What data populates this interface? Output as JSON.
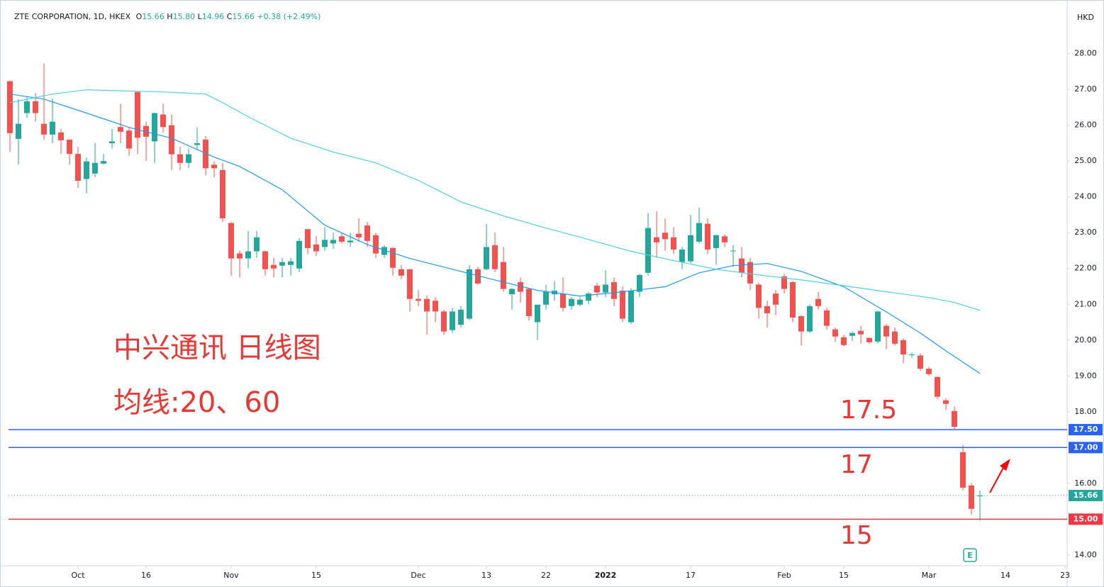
{
  "chart_data": {
    "type": "candlestick",
    "header": {
      "symbol": "ZTE CORPORATION, 1D, HKEX",
      "fields": [
        {
          "label": "O",
          "value": "15.66"
        },
        {
          "label": "H",
          "value": "15.80"
        },
        {
          "label": "L",
          "value": "14.96"
        },
        {
          "label": "C",
          "value": "15.66"
        }
      ],
      "change": "+0.38 (+2.49%)"
    },
    "currency": "HKD",
    "up_color": "#26a69a",
    "down_color": "#ef5350",
    "x": [
      0,
      1,
      2,
      3,
      4,
      5,
      6,
      7,
      8,
      9,
      10,
      11,
      12,
      13,
      14,
      15,
      16,
      17,
      18,
      19,
      20,
      21,
      22,
      23,
      24,
      25,
      26,
      27,
      28,
      29,
      30,
      31,
      32,
      33,
      34,
      35,
      36,
      37,
      38,
      39,
      40,
      41,
      42,
      43,
      44,
      45,
      46,
      47,
      48,
      49,
      50,
      51,
      52,
      53,
      54,
      55,
      56,
      57,
      58,
      59,
      60,
      61,
      62,
      63,
      64,
      65,
      66,
      67,
      68,
      69,
      70,
      71,
      72,
      73,
      74,
      75,
      76,
      77,
      78,
      79,
      80,
      81,
      82,
      83,
      84,
      85,
      86,
      87,
      88,
      89,
      90,
      91,
      92,
      93,
      94,
      95,
      96,
      97,
      98,
      99,
      100,
      101,
      102,
      103,
      104,
      105,
      106,
      107,
      108,
      109,
      110,
      111,
      112,
      113,
      114
    ],
    "open": [
      27.23,
      25.62,
      26.34,
      26.67,
      26.04,
      25.74,
      25.8,
      25.6,
      25.2,
      24.5,
      24.65,
      24.93,
      25.5,
      25.95,
      25.85,
      26.93,
      25.98,
      25.55,
      26.3,
      26.0,
      25.19,
      24.95,
      25.45,
      25.6,
      24.9,
      24.75,
      23.27,
      22.42,
      22.28,
      22.48,
      22.48,
      22.1,
      22.08,
      22.1,
      22.0,
      23.1,
      22.67,
      22.6,
      22.7,
      22.9,
      22.73,
      22.97,
      23.2,
      22.93,
      22.38,
      22.57,
      21.98,
      21.98,
      21.15,
      21.15,
      21.1,
      20.8,
      20.28,
      20.43,
      20.6,
      21.98,
      21.98,
      22.65,
      22.18,
      21.28,
      21.62,
      21.43,
      20.5,
      20.99,
      21.28,
      21.3,
      20.95,
      20.99,
      21.1,
      21.52,
      21.33,
      21.62,
      21.38,
      20.5,
      21.35,
      21.88,
      22.87,
      23.0,
      22.87,
      22.18,
      22.2,
      22.75,
      23.25,
      22.57,
      22.9,
      22.48,
      22.28,
      22.18,
      21.55,
      20.95,
      21.3,
      21.78,
      21.62,
      20.67,
      20.24,
      21.15,
      20.83,
      20.3,
      20.08,
      20.12,
      20.26,
      20.06,
      19.96,
      20.4,
      20.24,
      20.0,
      19.58,
      19.57,
      19.2,
      18.97,
      18.32,
      18.02,
      16.87,
      15.94,
      15.66
    ],
    "high": [
      27.25,
      26.73,
      26.8,
      26.9,
      27.72,
      26.75,
      25.9,
      25.6,
      25.4,
      25.1,
      25.5,
      25.2,
      25.9,
      26.6,
      25.95,
      26.93,
      26.1,
      26.35,
      26.6,
      26.3,
      25.4,
      25.35,
      25.95,
      25.7,
      25.0,
      24.95,
      23.3,
      22.5,
      23.05,
      23.05,
      22.5,
      22.3,
      22.3,
      22.3,
      22.85,
      23.1,
      22.9,
      23.15,
      23.0,
      23.0,
      23.0,
      23.4,
      23.3,
      23.0,
      22.65,
      22.6,
      22.1,
      21.98,
      21.4,
      21.25,
      21.2,
      20.85,
      20.9,
      20.95,
      22.1,
      22.05,
      23.25,
      23.0,
      22.6,
      21.45,
      21.75,
      21.45,
      20.99,
      21.55,
      21.65,
      21.75,
      21.2,
      21.2,
      21.35,
      21.6,
      21.95,
      21.75,
      21.5,
      21.45,
      21.85,
      23.55,
      23.6,
      23.4,
      23.15,
      22.6,
      23.5,
      23.7,
      23.4,
      22.95,
      22.95,
      22.65,
      22.6,
      22.3,
      21.6,
      21.1,
      21.4,
      21.85,
      21.65,
      20.7,
      21.0,
      21.35,
      20.9,
      20.35,
      20.15,
      20.25,
      20.4,
      20.08,
      20.82,
      20.45,
      20.35,
      20.05,
      19.65,
      19.63,
      19.25,
      18.98,
      18.38,
      18.15,
      17.07,
      16.0,
      15.8
    ],
    "low": [
      25.25,
      24.9,
      26.2,
      26.1,
      25.6,
      25.5,
      25.2,
      24.9,
      24.25,
      24.1,
      24.55,
      24.9,
      25.35,
      25.5,
      25.15,
      25.2,
      25.0,
      24.95,
      25.8,
      24.75,
      24.75,
      24.8,
      25.3,
      24.6,
      24.55,
      23.3,
      21.8,
      21.75,
      22.0,
      22.3,
      21.8,
      21.75,
      21.75,
      21.8,
      21.9,
      22.4,
      22.35,
      22.5,
      22.55,
      22.7,
      22.6,
      22.75,
      22.6,
      22.3,
      22.3,
      21.8,
      21.7,
      20.8,
      20.95,
      20.15,
      20.5,
      20.15,
      20.2,
      20.35,
      20.55,
      21.55,
      21.95,
      21.9,
      21.35,
      20.85,
      21.05,
      20.55,
      20.0,
      20.85,
      21.1,
      20.8,
      20.85,
      20.95,
      21.0,
      21.2,
      21.2,
      20.95,
      20.5,
      20.45,
      21.2,
      21.8,
      22.3,
      22.5,
      22.4,
      21.98,
      22.15,
      22.7,
      22.4,
      22.1,
      22.6,
      22.05,
      21.75,
      21.4,
      20.6,
      20.35,
      20.7,
      21.3,
      20.5,
      19.85,
      20.2,
      20.85,
      20.3,
      19.95,
      19.83,
      19.98,
      19.9,
      19.9,
      19.9,
      19.75,
      19.85,
      19.35,
      19.5,
      19.15,
      19.0,
      18.35,
      18.05,
      17.5,
      15.8,
      15.13,
      14.96
    ],
    "close": [
      25.78,
      26.04,
      26.67,
      26.34,
      25.74,
      26.1,
      25.58,
      25.2,
      24.45,
      24.99,
      24.95,
      25.0,
      25.55,
      25.82,
      25.35,
      25.65,
      25.68,
      26.34,
      25.95,
      25.19,
      24.95,
      25.19,
      25.5,
      24.8,
      24.8,
      23.4,
      22.28,
      22.28,
      22.48,
      22.87,
      21.98,
      22.0,
      22.18,
      22.2,
      22.77,
      22.57,
      22.48,
      22.8,
      22.8,
      22.75,
      22.78,
      22.87,
      22.77,
      22.42,
      22.6,
      22.02,
      21.8,
      21.15,
      21.1,
      20.8,
      20.8,
      20.24,
      20.8,
      20.85,
      21.98,
      21.58,
      22.6,
      21.98,
      21.43,
      21.43,
      21.35,
      20.67,
      20.99,
      21.35,
      21.38,
      20.9,
      21.15,
      21.13,
      21.3,
      21.33,
      21.55,
      21.15,
      20.6,
      21.38,
      21.82,
      23.13,
      22.73,
      22.82,
      22.53,
      22.53,
      22.93,
      23.27,
      22.53,
      22.93,
      22.73,
      22.5,
      21.88,
      21.58,
      20.9,
      20.75,
      20.99,
      21.43,
      20.63,
      20.24,
      20.95,
      20.95,
      20.4,
      20.1,
      19.86,
      20.2,
      20.16,
      19.94,
      20.8,
      20.1,
      19.9,
      19.6,
      19.6,
      19.2,
      19.05,
      18.42,
      18.22,
      17.58,
      15.88,
      15.29,
      15.66
    ],
    "moving_averages": [
      {
        "color": "#2196f3",
        "x": [
          0,
          4,
          9,
          14,
          19,
          24,
          27,
          32,
          37,
          42,
          47,
          52,
          57,
          62,
          67,
          72,
          77,
          81,
          85,
          89,
          93,
          98,
          103,
          107,
          110,
          114
        ],
        "values": [
          26.87,
          26.73,
          26.34,
          25.94,
          25.64,
          25.11,
          24.85,
          24.2,
          23.21,
          22.67,
          22.28,
          21.98,
          21.68,
          21.39,
          21.23,
          21.35,
          21.49,
          21.88,
          22.08,
          22.14,
          21.92,
          21.49,
          20.79,
          20.2,
          19.7,
          19.07
        ]
      },
      {
        "color": "#4dd0e1",
        "x": [
          0,
          5,
          9,
          18,
          23,
          25,
          28,
          33,
          38,
          43,
          48,
          53,
          58,
          63,
          68,
          73,
          78,
          83,
          88,
          93,
          98,
          103,
          108,
          111,
          114
        ],
        "values": [
          26.63,
          26.87,
          26.99,
          26.93,
          26.87,
          26.63,
          26.24,
          25.64,
          25.25,
          24.95,
          24.46,
          23.86,
          23.47,
          23.13,
          22.81,
          22.48,
          22.22,
          21.98,
          21.82,
          21.68,
          21.52,
          21.35,
          21.19,
          21.05,
          20.83
        ]
      }
    ],
    "levels": [
      {
        "value": 17.5,
        "label": "17.50",
        "color": "#2962ff",
        "style": "solid"
      },
      {
        "value": 17.0,
        "label": "17.00",
        "color": "#2962ff",
        "style": "solid"
      },
      {
        "value": 15.66,
        "label": "15.66",
        "color": "#26a69a",
        "style": "dotted"
      },
      {
        "value": 15.0,
        "label": "15.00",
        "color": "#f23645",
        "style": "solid"
      }
    ],
    "annotations": [
      {
        "text": "中兴通讯 日线图",
        "color": "#e53935"
      },
      {
        "text": "均线:20、60",
        "color": "#e53935"
      },
      {
        "text": "17.5",
        "color": "#e53935"
      },
      {
        "text": "17",
        "color": "#e53935"
      },
      {
        "text": "15",
        "color": "#e53935"
      },
      {
        "text": "E",
        "color": "#26a69a"
      }
    ],
    "xlim": [
      -1.1667,
      124.25
    ],
    "xticks": [
      {
        "value": 8,
        "label": "Oct"
      },
      16,
      {
        "value": 26,
        "label": "Nov"
      },
      {
        "value": 36,
        "label": "15"
      },
      {
        "value": 48,
        "label": "Dec"
      },
      {
        "value": 56,
        "label": "13"
      },
      {
        "value": 63,
        "label": "22"
      },
      {
        "value": 70,
        "label": "2022"
      },
      {
        "value": 80,
        "label": "17"
      },
      {
        "value": 91,
        "label": "Feb"
      },
      {
        "value": 98,
        "label": "15"
      },
      {
        "value": 108,
        "label": "Mar"
      },
      {
        "value": 117,
        "label": "14"
      },
      {
        "value": 124,
        "label": "23"
      }
    ],
    "ylim": [
      13.7,
      29.3
    ],
    "yticks": [
      {
        "value": 14,
        "label": "14.00"
      },
      {
        "value": 15,
        "label": "15.00"
      },
      {
        "value": 16,
        "label": "16.00"
      },
      {
        "value": 17,
        "label": "17.00"
      },
      {
        "value": 18,
        "label": "18.00"
      },
      {
        "value": 19,
        "label": "19.00"
      },
      {
        "value": 20,
        "label": "20.00"
      },
      {
        "value": 21,
        "label": "21.00"
      },
      {
        "value": 22,
        "label": "22.00"
      },
      {
        "value": 23,
        "label": "23.00"
      },
      {
        "value": 24,
        "label": "24.00"
      },
      {
        "value": 25,
        "label": "25.00"
      },
      {
        "value": 26,
        "label": "26.00"
      },
      {
        "value": 27,
        "label": "27.00"
      },
      {
        "value": 28,
        "label": "28.00"
      }
    ],
    "grid": false
  }
}
